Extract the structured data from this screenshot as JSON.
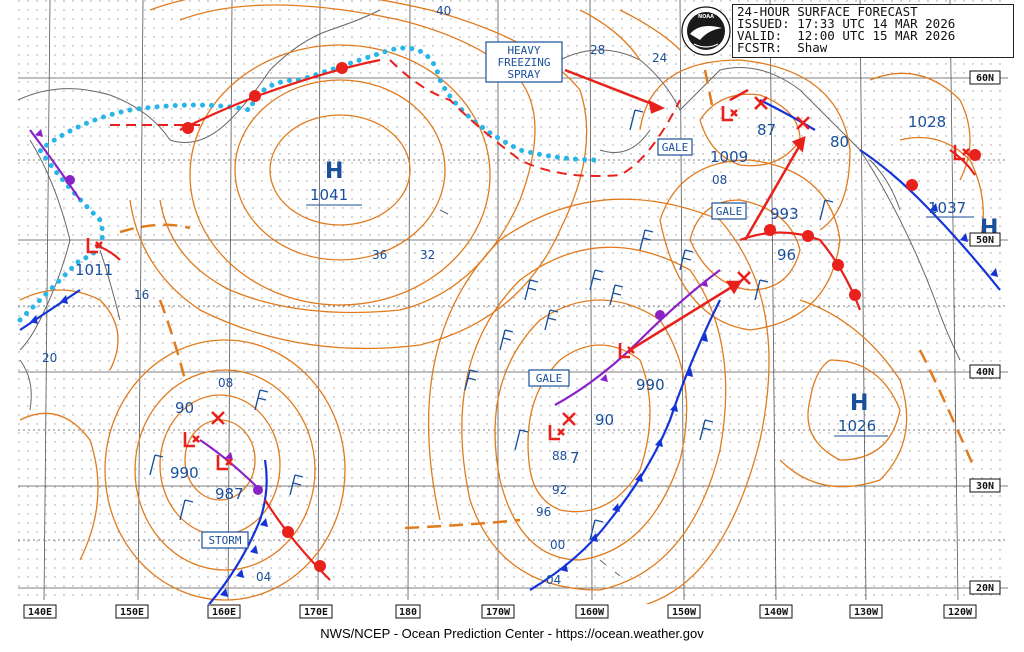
{
  "header": {
    "line1": "24-HOUR SURFACE FORECAST",
    "line2": "ISSUED: 17:33 UTC 14 MAR 2026",
    "line3": "VALID:  12:00 UTC 15 MAR 2026",
    "line4": "FCSTR:  Shaw"
  },
  "footer": "NWS/NCEP - Ocean Prediction Center - https://ocean.weather.gov",
  "logo_text": "NOAA",
  "longitude_labels": [
    "140E",
    "150E",
    "160E",
    "170E",
    "180",
    "170W",
    "160W",
    "150W",
    "140W",
    "130W",
    "120W"
  ],
  "latitude_labels": [
    "60N",
    "50N",
    "40N",
    "30N",
    "20N"
  ],
  "highs": [
    {
      "id": "h-bering",
      "letter": "H",
      "pressure": "1041"
    },
    {
      "id": "h-northeast",
      "letter": "H",
      "pressure": "1037"
    },
    {
      "id": "h-east",
      "letter": "H",
      "pressure": "1026"
    }
  ],
  "lows": [
    {
      "id": "l-japan",
      "pressure": "1011"
    },
    {
      "id": "l-west1",
      "pressure": "990"
    },
    {
      "id": "l-west2",
      "pressure": "987"
    },
    {
      "id": "l-west3",
      "pressure": "90"
    },
    {
      "id": "l-central1",
      "pressure": "90"
    },
    {
      "id": "l-central2",
      "pressure": "88"
    },
    {
      "id": "l-central3",
      "pressure": "7"
    },
    {
      "id": "l-mid",
      "pressure": "990"
    },
    {
      "id": "l-gulf1",
      "pressure": "993"
    },
    {
      "id": "l-gulf2",
      "pressure": "96"
    },
    {
      "id": "l-alaska1",
      "pressure": "1009"
    },
    {
      "id": "l-alaska2",
      "pressure": "87"
    },
    {
      "id": "l-alaska3",
      "pressure": "80"
    },
    {
      "id": "l-bc",
      "pressure": "1028"
    }
  ],
  "warnings": {
    "heavy_freezing_spray": [
      "HEAVY",
      "FREEZING",
      "SPRAY"
    ],
    "gale_1": "GALE",
    "gale_2": "GALE",
    "gale_3": "GALE",
    "storm": "STORM"
  },
  "isobar_labels": [
    "40",
    "28",
    "24",
    "36",
    "32",
    "16",
    "20",
    "08",
    "08",
    "92",
    "96",
    "00",
    "04",
    "04"
  ],
  "colors": {
    "isobar": "#e07b1f",
    "warm_front": "#e8211c",
    "cold_front": "#1434d8",
    "occluded_front": "#8a22c8",
    "ice_edge": "#29b5e8",
    "label_blue": "#1a4f9c",
    "grid": "#555555",
    "coast": "#666666"
  }
}
